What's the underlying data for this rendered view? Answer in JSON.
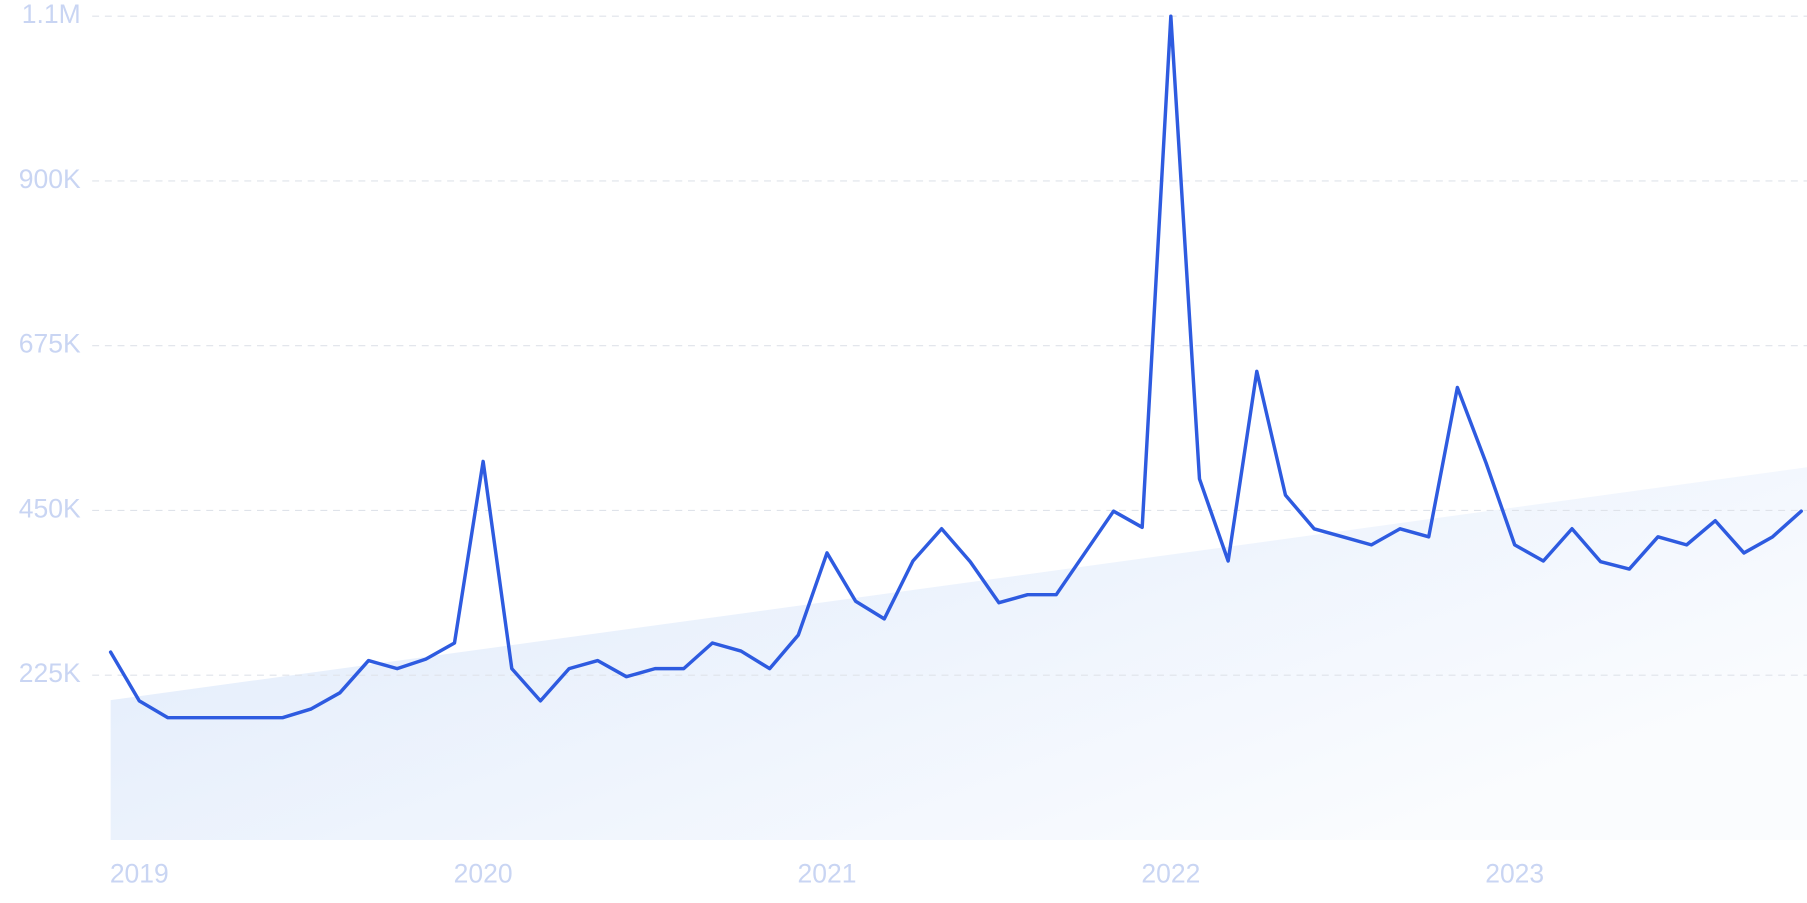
{
  "chart_data": {
    "type": "line",
    "categories": [
      null,
      "2019",
      null,
      null,
      null,
      null,
      null,
      null,
      null,
      null,
      null,
      null,
      null,
      "2020",
      null,
      null,
      null,
      null,
      null,
      null,
      null,
      null,
      null,
      null,
      null,
      "2021",
      null,
      null,
      null,
      null,
      null,
      null,
      null,
      null,
      null,
      null,
      null,
      "2022",
      null,
      null,
      null,
      null,
      null,
      null,
      null,
      null,
      null,
      null,
      null,
      "2023",
      null,
      null,
      null,
      null,
      null,
      null,
      null,
      null,
      null,
      null
    ],
    "series": [
      {
        "color": "#2e5be0",
        "values": [
          256600,
          190000,
          167000,
          167000,
          167000,
          167000,
          167000,
          179000,
          201000,
          245000,
          234000,
          247000,
          269000,
          517000,
          234000,
          190000,
          234000,
          245000,
          223000,
          234000,
          234000,
          269000,
          258000,
          234000,
          280000,
          392000,
          326000,
          302000,
          381000,
          425000,
          380000,
          324000,
          335000,
          335000,
          392000,
          449000,
          427000,
          1125000,
          493000,
          381000,
          640000,
          471000,
          425000,
          414000,
          403000,
          425000,
          414000,
          618000,
          515000,
          403000,
          381000,
          425000,
          380000,
          370000,
          414000,
          403000,
          436000,
          392000,
          414000,
          449000
        ]
      }
    ],
    "trend_values": [
      191000,
      509000
    ],
    "trend_color": "#dfeafb",
    "ylim": [
      0,
      1125000
    ],
    "yticks": [
      {
        "value": 225000,
        "label": "225K"
      },
      {
        "value": 450000,
        "label": "450K"
      },
      {
        "value": 675000,
        "label": "675K"
      },
      {
        "value": 900000,
        "label": "900K"
      },
      {
        "value": 1125000,
        "label": "1.1M"
      }
    ],
    "grid": true
  }
}
